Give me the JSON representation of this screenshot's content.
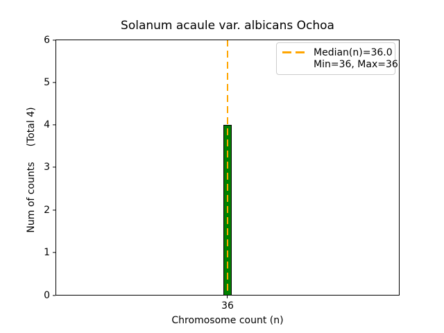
{
  "chart_data": {
    "type": "bar",
    "title": "Solanum acaule var. albicans Ochoa",
    "xlabel": "Chromosome count (n)",
    "ylabel": "Num of counts",
    "ylabel_suffix": "(Total 4)",
    "total_counts": 4,
    "categories": [
      "36"
    ],
    "values": [
      4
    ],
    "ylim": [
      0,
      6
    ],
    "yticks": [
      "0",
      "1",
      "2",
      "3",
      "4",
      "5",
      "6"
    ],
    "xticks": [
      "36"
    ],
    "grid": false,
    "legend_position": "upper right",
    "bar_fill_color": "#008000",
    "bar_edge_color": "#000000",
    "median_line": {
      "x": 36.0,
      "color": "#FFA500",
      "style": "dashed"
    },
    "stats": {
      "median": 36.0,
      "min": 36,
      "max": 36
    },
    "legend": {
      "entries": [
        {
          "label": "Median(n)=36.0",
          "handle": "orange-dashed-line"
        },
        {
          "label": "Min=36, Max=36",
          "handle": "none"
        }
      ]
    }
  }
}
